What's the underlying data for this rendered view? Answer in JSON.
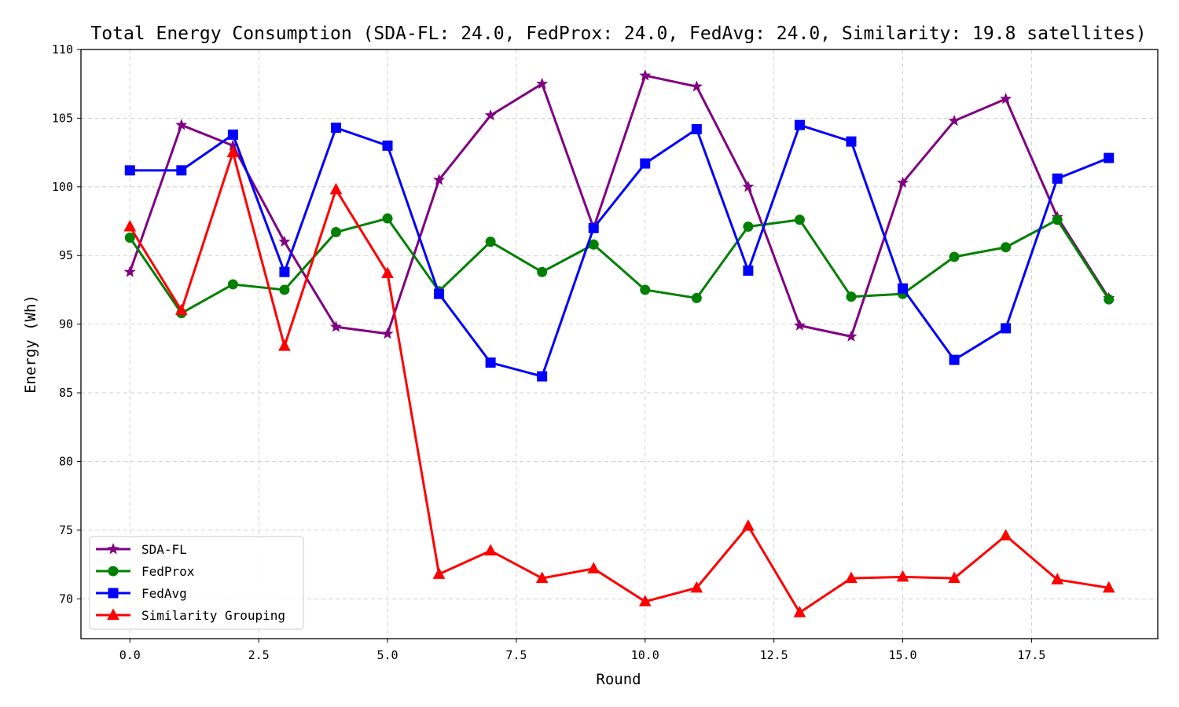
{
  "chart_data": {
    "type": "line",
    "title": "Total Energy Consumption (SDA-FL: 24.0, FedProx: 24.0, FedAvg: 24.0, Similarity: 19.8 satellites)",
    "xlabel": "Round",
    "ylabel": "Energy (Wh)",
    "xlim": [
      -0.95,
      19.95
    ],
    "ylim": [
      67.1,
      110
    ],
    "xticks": [
      0.0,
      2.5,
      5.0,
      7.5,
      10.0,
      12.5,
      15.0,
      17.5
    ],
    "xtick_labels": [
      "0.0",
      "2.5",
      "5.0",
      "7.5",
      "10.0",
      "12.5",
      "15.0",
      "17.5"
    ],
    "yticks": [
      70,
      75,
      80,
      85,
      90,
      95,
      100,
      105,
      110
    ],
    "ytick_labels": [
      "70",
      "75",
      "80",
      "85",
      "90",
      "95",
      "100",
      "105",
      "110"
    ],
    "grid": true,
    "legend_position": "lower-left",
    "x": [
      0,
      1,
      2,
      3,
      4,
      5,
      6,
      7,
      8,
      9,
      10,
      11,
      12,
      13,
      14,
      15,
      16,
      17,
      18,
      19
    ],
    "series": [
      {
        "name": "SDA-FL",
        "color": "#800080",
        "marker": "star",
        "values": [
          93.8,
          104.5,
          103.0,
          96.0,
          89.8,
          89.3,
          100.5,
          105.2,
          107.5,
          97.0,
          108.1,
          107.3,
          100.0,
          89.9,
          89.1,
          100.3,
          104.8,
          106.4,
          97.8,
          91.9
        ]
      },
      {
        "name": "FedProx",
        "color": "#008000",
        "marker": "circle",
        "values": [
          96.3,
          90.8,
          92.9,
          92.5,
          96.7,
          97.7,
          92.4,
          96.0,
          93.8,
          95.8,
          92.5,
          91.9,
          97.1,
          97.6,
          92.0,
          92.2,
          94.9,
          95.6,
          97.6,
          91.8
        ]
      },
      {
        "name": "FedAvg",
        "color": "#0000ff",
        "marker": "square",
        "values": [
          101.2,
          101.2,
          103.8,
          93.8,
          104.3,
          103.0,
          92.2,
          87.2,
          86.2,
          97.0,
          101.7,
          104.2,
          93.9,
          104.5,
          103.3,
          92.6,
          87.4,
          89.7,
          100.6,
          102.1
        ]
      },
      {
        "name": "Similarity Grouping",
        "color": "#ff0000",
        "marker": "triangle",
        "values": [
          97.1,
          91.0,
          102.5,
          88.4,
          99.8,
          93.7,
          71.8,
          73.5,
          71.5,
          72.2,
          69.8,
          70.8,
          75.3,
          69.0,
          71.5,
          71.6,
          71.5,
          74.6,
          71.4,
          70.8
        ]
      }
    ]
  }
}
